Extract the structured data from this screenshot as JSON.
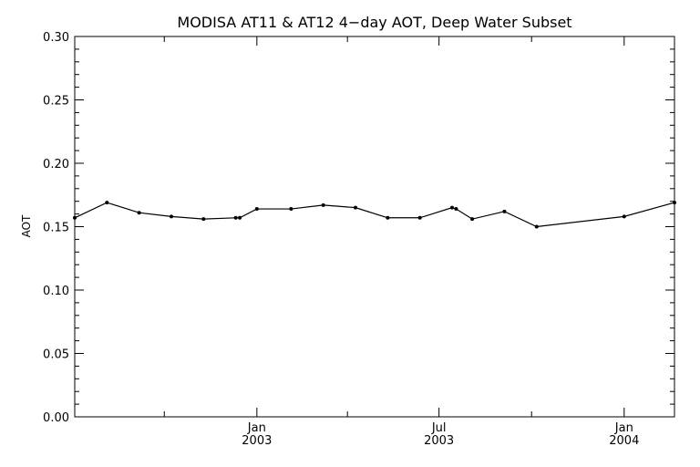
{
  "chart_data": {
    "type": "line",
    "title": "MODISA AT11 & AT12 4−day AOT, Deep Water Subset",
    "xlabel": "",
    "ylabel": "AOT",
    "xlim": [
      "2002-07-04",
      "2004-02-20"
    ],
    "ylim": [
      0.0,
      0.3
    ],
    "yticks": [
      0.0,
      0.05,
      0.1,
      0.15,
      0.2,
      0.25,
      0.3
    ],
    "ytick_labels": [
      "0.00",
      "0.05",
      "0.10",
      "0.15",
      "0.20",
      "0.25",
      "0.30"
    ],
    "xticks": [
      {
        "date": "2003-01-01",
        "month": "Jan",
        "year": "2003"
      },
      {
        "date": "2003-07-01",
        "month": "Jul",
        "year": "2003"
      },
      {
        "date": "2004-01-01",
        "month": "Jan",
        "year": "2004"
      }
    ],
    "grid": false,
    "series": [
      {
        "points": [
          {
            "x": "2002-07-04",
            "y": 0.157
          },
          {
            "x": "2002-08-05",
            "y": 0.169
          },
          {
            "x": "2002-09-06",
            "y": 0.161
          },
          {
            "x": "2002-10-08",
            "y": 0.158
          },
          {
            "x": "2002-11-09",
            "y": 0.156
          },
          {
            "x": "2002-12-11",
            "y": 0.157
          },
          {
            "x": "2002-12-15",
            "y": 0.157
          },
          {
            "x": "2003-01-01",
            "y": 0.164
          },
          {
            "x": "2003-02-04",
            "y": 0.164
          },
          {
            "x": "2003-03-08",
            "y": 0.167
          },
          {
            "x": "2003-04-09",
            "y": 0.165
          },
          {
            "x": "2003-05-11",
            "y": 0.157
          },
          {
            "x": "2003-06-12",
            "y": 0.157
          },
          {
            "x": "2003-07-14",
            "y": 0.165
          },
          {
            "x": "2003-07-18",
            "y": 0.164
          },
          {
            "x": "2003-08-03",
            "y": 0.156
          },
          {
            "x": "2003-09-04",
            "y": 0.162
          },
          {
            "x": "2003-10-06",
            "y": 0.15
          },
          {
            "x": "2004-01-01",
            "y": 0.158
          },
          {
            "x": "2004-02-20",
            "y": 0.169
          }
        ]
      }
    ]
  }
}
